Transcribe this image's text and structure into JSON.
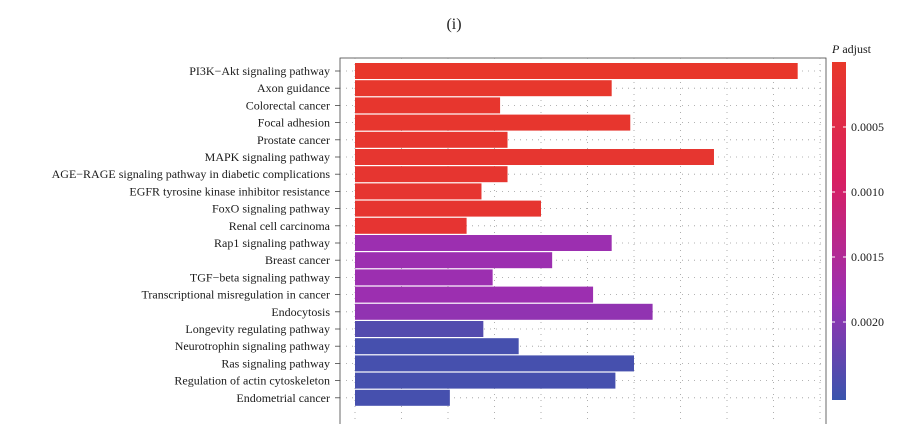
{
  "panel_label": "(i)",
  "chart_data": {
    "type": "bar",
    "orientation": "horizontal",
    "categories": [
      "PI3K−Akt signaling pathway",
      "Axon guidance",
      "Colorectal cancer",
      "Focal adhesion",
      "Prostate cancer",
      "MAPK signaling pathway",
      "AGE−RAGE signaling pathway in diabetic complications",
      "EGFR tyrosine kinase inhibitor resistance",
      "FoxO signaling pathway",
      "Renal cell carcinoma",
      "Rap1 signaling pathway",
      "Breast cancer",
      "TGF−beta signaling pathway",
      "Transcriptional misregulation in cancer",
      "Endocytosis",
      "Longevity regulating pathway",
      "Neurotrophin signaling pathway",
      "Ras signaling pathway",
      "Regulation of actin cytoskeleton",
      "Endometrial cancer"
    ],
    "values": [
      23.8,
      13.8,
      7.8,
      14.8,
      8.2,
      19.3,
      8.2,
      6.8,
      10.0,
      6.0,
      13.8,
      10.6,
      7.4,
      12.8,
      16.0,
      6.9,
      8.8,
      15.0,
      14.0,
      5.1
    ],
    "p_adjust": [
      2e-05,
      5e-05,
      6e-05,
      7e-05,
      8e-05,
      9e-05,
      0.0001,
      0.00012,
      0.0001,
      0.00013,
      0.0018,
      0.0018,
      0.0018,
      0.0018,
      0.0019,
      0.0024,
      0.0025,
      0.0025,
      0.0025,
      0.0025
    ],
    "xlim": [
      0,
      25
    ],
    "x_grid_step": 2.5,
    "xlabel": "",
    "ylabel": "",
    "grid": true,
    "grid_style": "dotted",
    "colorbar": {
      "title_italic": "P",
      "title_rest": " adjust",
      "range": [
        0,
        0.0026
      ],
      "ticks": [
        0.0005,
        0.001,
        0.0015,
        0.002
      ],
      "tick_labels": [
        "0.0005",
        "0.0010",
        "0.0015",
        "0.0020"
      ],
      "colors": [
        "#e8382a",
        "#d81f62",
        "#9b2fb2",
        "#3a55ad"
      ]
    },
    "legend_position": "right"
  }
}
